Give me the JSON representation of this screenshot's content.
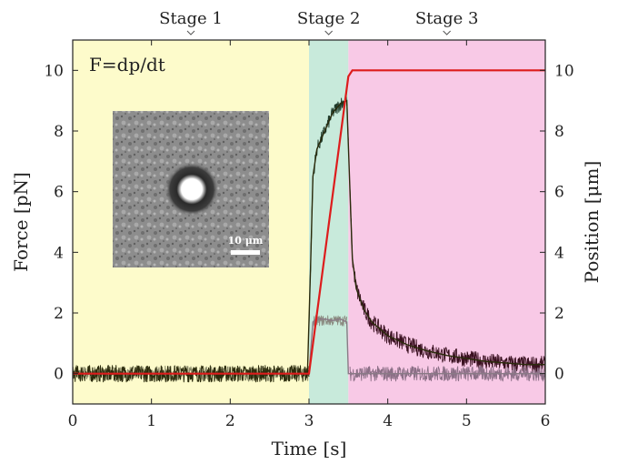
{
  "chart_data": {
    "type": "line",
    "title": "",
    "xlabel": "Time [s]",
    "ylabel_left": "Force [pN]",
    "ylabel_right": "Position [μm]",
    "annotation": "F=dp/dt",
    "xlim": [
      0,
      6
    ],
    "ylim_left": [
      -1,
      11
    ],
    "ylim_right": [
      -1,
      11
    ],
    "x_ticks": [
      0,
      1,
      2,
      3,
      4,
      5,
      6
    ],
    "y_ticks_left": [
      0,
      2,
      4,
      6,
      8,
      10
    ],
    "y_ticks_right": [
      0,
      2,
      4,
      6,
      8,
      10
    ],
    "grid": false,
    "stages": [
      {
        "label": "Stage 1",
        "x_start": 0,
        "x_end": 3,
        "color": "#fdfbcb"
      },
      {
        "label": "Stage 2",
        "x_start": 3,
        "x_end": 3.5,
        "color": "#c8eadb"
      },
      {
        "label": "Stage 3",
        "x_start": 3.5,
        "x_end": 6,
        "color": "#f8c9e6"
      }
    ],
    "series": [
      {
        "color": "#2b2b0c",
        "axis": "left",
        "x": [
          0,
          0.5,
          1,
          1.5,
          2,
          2.5,
          2.98,
          3.02,
          3.05,
          3.1,
          3.2,
          3.3,
          3.4,
          3.48,
          3.52,
          3.55,
          3.6,
          3.7,
          3.8,
          4.0,
          4.25,
          4.5,
          4.75,
          5.0,
          5.25,
          5.5,
          5.75,
          6.0
        ],
        "values": [
          0,
          0,
          0,
          0,
          0,
          0,
          0,
          3.5,
          6.5,
          7.4,
          8.0,
          8.6,
          8.9,
          9.0,
          6.0,
          3.8,
          2.8,
          2.1,
          1.7,
          1.25,
          0.95,
          0.75,
          0.6,
          0.5,
          0.4,
          0.35,
          0.3,
          0.3
        ]
      },
      {
        "color": "#8a7a86",
        "axis": "left",
        "x": [
          3.0,
          3.05,
          3.1,
          3.2,
          3.3,
          3.4,
          3.48,
          3.5,
          4.0,
          5.0,
          6.0
        ],
        "values": [
          0,
          1.7,
          1.8,
          1.8,
          1.75,
          1.8,
          1.7,
          0,
          0,
          0,
          0
        ]
      },
      {
        "color": "#dd1c1c",
        "axis": "right",
        "x": [
          0,
          3.0,
          3.5,
          3.55,
          6.0
        ],
        "values": [
          0,
          0,
          9.8,
          10,
          10
        ]
      }
    ]
  },
  "inset": {
    "scalebar_label": "10 μm"
  }
}
